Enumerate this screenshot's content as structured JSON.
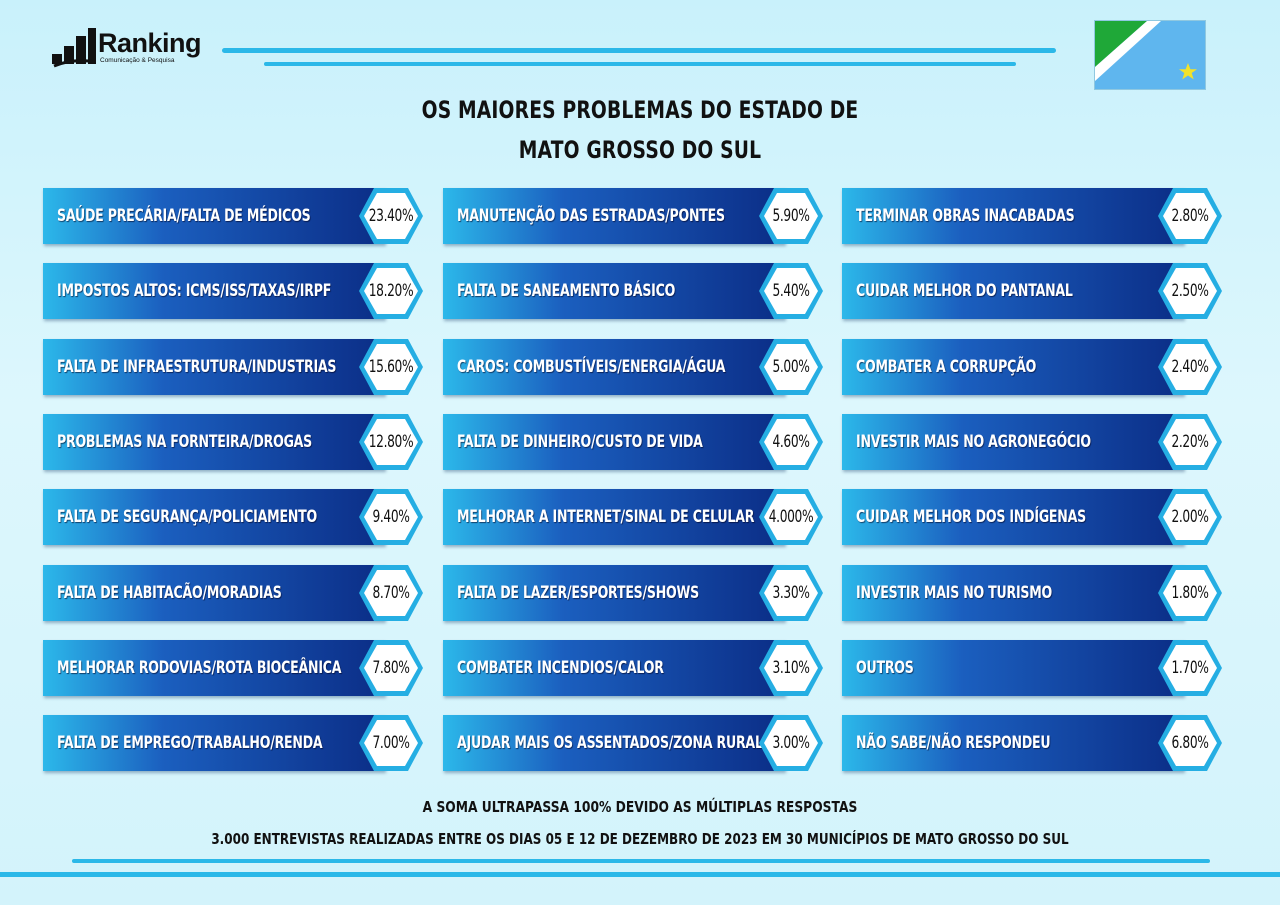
{
  "brand": {
    "name": "Ranking",
    "tagline": "Comunicação & Pesquisa"
  },
  "header": {
    "title_line1": "OS MAIORES PROBLEMAS DO ESTADO DE",
    "title_line2": "MATO GROSSO DO SUL"
  },
  "flag": {
    "icon": "mato-grosso-do-sul-flag-icon",
    "colors": {
      "green": "#1fa838",
      "white": "#ffffff",
      "blue": "#5fb6ee",
      "star": "#f2e22a"
    }
  },
  "colors": {
    "bar_start": "#2cb8ea",
    "bar_end": "#0b2d86",
    "hex_border": "#25aee3",
    "accent_line": "#2bb8e8"
  },
  "chart_data": {
    "type": "table",
    "columns": [
      [
        {
          "label": "SAÚDE PRECÁRIA/FALTA DE MÉDICOS",
          "value": "23.40%"
        },
        {
          "label": "IMPOSTOS ALTOS: ICMS/ISS/TAXAS/IRPF",
          "value": "18.20%"
        },
        {
          "label": "FALTA DE INFRAESTRUTURA/INDUSTRIAS",
          "value": "15.60%"
        },
        {
          "label": "PROBLEMAS NA FORNTEIRA/DROGAS",
          "value": "12.80%"
        },
        {
          "label": "FALTA DE SEGURANÇA/POLICIAMENTO",
          "value": "9.40%"
        },
        {
          "label": "FALTA DE HABITACÃO/MORADIAS",
          "value": "8.70%"
        },
        {
          "label": "MELHORAR RODOVIAS/ROTA BIOCEÂNICA",
          "value": "7.80%"
        },
        {
          "label": "FALTA DE EMPREGO/TRABALHO/RENDA",
          "value": "7.00%"
        }
      ],
      [
        {
          "label": "MANUTENÇÃO DAS ESTRADAS/PONTES",
          "value": "5.90%"
        },
        {
          "label": "FALTA DE SANEAMENTO BÁSICO",
          "value": "5.40%"
        },
        {
          "label": "CAROS: COMBUSTÍVEIS/ENERGIA/ÁGUA",
          "value": "5.00%"
        },
        {
          "label": "FALTA DE DINHEIRO/CUSTO DE VIDA",
          "value": "4.60%"
        },
        {
          "label": "MELHORAR A INTERNET/SINAL DE CELULAR",
          "value": "4.000%"
        },
        {
          "label": "FALTA DE LAZER/ESPORTES/SHOWS",
          "value": "3.30%"
        },
        {
          "label": "COMBATER INCENDIOS/CALOR",
          "value": "3.10%"
        },
        {
          "label": "AJUDAR MAIS OS ASSENTADOS/ZONA RURAL",
          "value": "3.00%"
        }
      ],
      [
        {
          "label": "TERMINAR OBRAS INACABADAS",
          "value": "2.80%"
        },
        {
          "label": "CUIDAR MELHOR DO PANTANAL",
          "value": "2.50%"
        },
        {
          "label": "COMBATER A CORRUPÇÃO",
          "value": "2.40%"
        },
        {
          "label": "INVESTIR MAIS NO AGRONEGÓCIO",
          "value": "2.20%"
        },
        {
          "label": "CUIDAR MELHOR DOS INDÍGENAS",
          "value": "2.00%"
        },
        {
          "label": "INVESTIR MAIS NO TURISMO",
          "value": "1.80%"
        },
        {
          "label": "OUTROS",
          "value": "1.70%"
        },
        {
          "label": "NÃO SABE/NÃO RESPONDEU",
          "value": "6.80%"
        }
      ]
    ]
  },
  "footer": {
    "note1": "A SOMA ULTRAPASSA 100% DEVIDO AS MÚLTIPLAS RESPOSTAS",
    "note2": "3.000 ENTREVISTAS REALIZADAS ENTRE OS DIAS 05 E 12 DE DEZEMBRO DE 2023 EM 30 MUNICÍPIOS DE MATO GROSSO DO SUL"
  }
}
